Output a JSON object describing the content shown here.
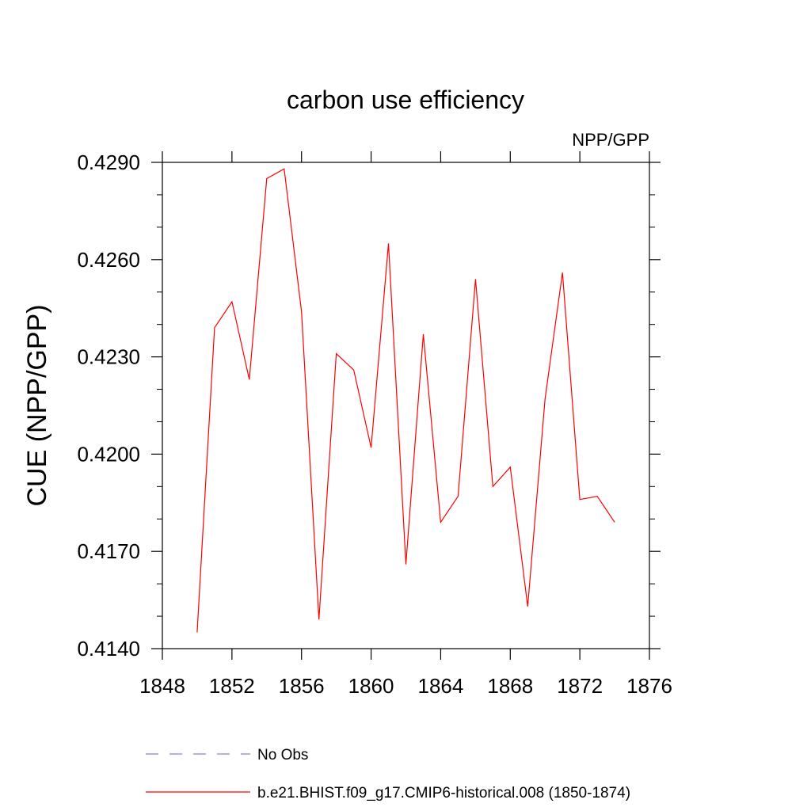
{
  "chart_data": {
    "type": "line",
    "title": "carbon use efficiency",
    "subtitle": "NPP/GPP",
    "xlabel": "",
    "ylabel": "CUE  (NPP/GPP)",
    "xlim": [
      1848,
      1876
    ],
    "ylim": [
      0.414,
      0.429
    ],
    "xticks": [
      1848,
      1852,
      1856,
      1860,
      1864,
      1868,
      1872,
      1876
    ],
    "xtick_labels": [
      "1848",
      "1852",
      "1856",
      "1860",
      "1864",
      "1868",
      "1872",
      "1876"
    ],
    "yticks": [
      0.414,
      0.417,
      0.42,
      0.423,
      0.426,
      0.429
    ],
    "ytick_labels": [
      "0.4140",
      "0.4170",
      "0.4200",
      "0.4230",
      "0.4260",
      "0.4290"
    ],
    "grid": false,
    "legend_position": "bottom-left",
    "series": [
      {
        "name": "b.e21.BHIST.f09_g17.CMIP6-historical.008 (1850-1874)",
        "color": "#ff0000",
        "style": "solid",
        "x": [
          1850,
          1851,
          1852,
          1853,
          1854,
          1855,
          1856,
          1857,
          1858,
          1859,
          1860,
          1861,
          1862,
          1863,
          1864,
          1865,
          1866,
          1867,
          1868,
          1869,
          1870,
          1871,
          1872,
          1873,
          1874
        ],
        "y": [
          0.4145,
          0.4239,
          0.4247,
          0.4223,
          0.4285,
          0.4288,
          0.4244,
          0.4149,
          0.4231,
          0.4226,
          0.4202,
          0.4265,
          0.4166,
          0.4237,
          0.4179,
          0.4187,
          0.4254,
          0.419,
          0.4196,
          0.4153,
          0.4217,
          0.4256,
          0.4186,
          0.4187,
          0.4179
        ]
      }
    ],
    "legend": [
      {
        "label": "No Obs",
        "color": "#8888cc",
        "style": "dashed"
      },
      {
        "label": "b.e21.BHIST.f09_g17.CMIP6-historical.008 (1850-1874)",
        "color": "#ff0000",
        "style": "solid"
      }
    ]
  }
}
